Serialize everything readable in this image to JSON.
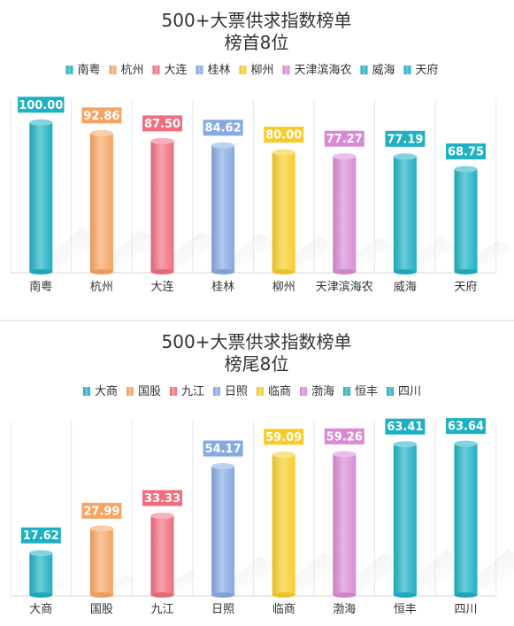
{
  "palette": [
    "#1eb0c3",
    "#f6a463",
    "#f06e7e",
    "#86a9e3",
    "#f7cc2a",
    "#d98ad5",
    "#1eb0c3",
    "#1eb0c3"
  ],
  "chart_data": [
    {
      "type": "bar",
      "title": "500+大票供求指数榜单",
      "subtitle": "榜首8位",
      "categories": [
        "南粤",
        "杭州",
        "大连",
        "桂林",
        "柳州",
        "天津滨海农",
        "威海",
        "天府"
      ],
      "values": [
        100.0,
        92.86,
        87.5,
        84.62,
        80.0,
        77.27,
        77.19,
        68.75
      ],
      "value_labels": [
        "100.00",
        "92.86",
        "87.50",
        "84.62",
        "80.00",
        "77.27",
        "77.19",
        "68.75"
      ],
      "legend": [
        "南粤",
        "杭州",
        "大连",
        "桂林",
        "柳州",
        "天津滨海农",
        "威海",
        "天府"
      ],
      "legend_position": "top",
      "ylim": [
        0,
        115
      ],
      "grid": "vertical"
    },
    {
      "type": "bar",
      "title": "500+大票供求指数榜单",
      "subtitle": "榜尾8位",
      "categories": [
        "大商",
        "国股",
        "九江",
        "日照",
        "临商",
        "渤海",
        "恒丰",
        "四川"
      ],
      "values": [
        17.62,
        27.99,
        33.33,
        54.17,
        59.09,
        59.26,
        63.41,
        63.64
      ],
      "value_labels": [
        "17.62",
        "27.99",
        "33.33",
        "54.17",
        "59.09",
        "59.26",
        "63.41",
        "63.64"
      ],
      "legend": [
        "大商",
        "国股",
        "九江",
        "日照",
        "临商",
        "渤海",
        "恒丰",
        "四川"
      ],
      "legend_position": "top",
      "ylim": [
        0,
        73
      ],
      "grid": "vertical"
    }
  ]
}
